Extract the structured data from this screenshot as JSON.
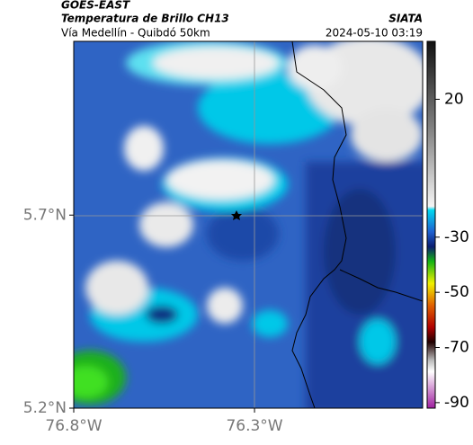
{
  "header": {
    "source": "GOES-EAST",
    "title": "Temperatura de Brillo CH13",
    "subtitle": "Vía Medellín - Quibdó 50km",
    "organization": "SIATA",
    "datetime": "2024-05-10 03:19"
  },
  "map": {
    "xlim": [
      -76.8,
      -75.835
    ],
    "ylim": [
      5.2,
      6.15
    ],
    "xticks": [
      {
        "value": -76.8,
        "label": "76.8°W"
      },
      {
        "value": -76.3,
        "label": "76.3°W"
      }
    ],
    "yticks": [
      {
        "value": 5.2,
        "label": "5.2°N"
      },
      {
        "value": 5.7,
        "label": "5.7°N"
      }
    ]
  },
  "colorbar": {
    "lim": [
      -92,
      41
    ],
    "ticks": [
      20,
      -30,
      -50,
      -70,
      -90
    ]
  }
}
